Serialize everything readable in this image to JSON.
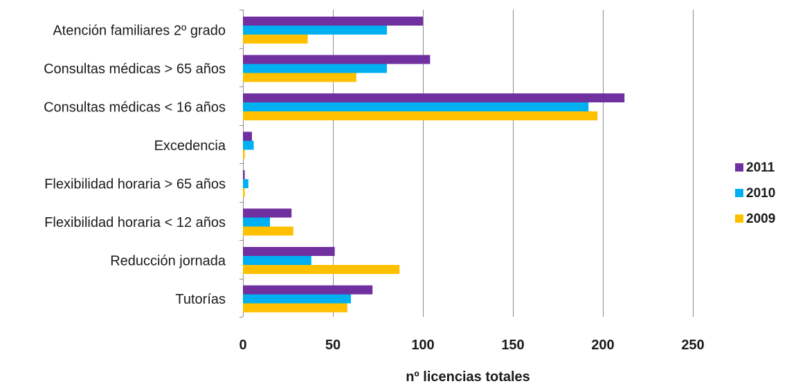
{
  "chart_data": {
    "type": "bar",
    "orientation": "horizontal",
    "categories": [
      "Atención familiares 2º grado",
      "Consultas médicas > 65 años",
      "Consultas médicas < 16 años",
      "Excedencia",
      "Flexibilidad horaria > 65 años",
      "Flexibilidad horaria < 12 años",
      "Reducción jornada",
      "Tutorías"
    ],
    "series": [
      {
        "name": "2011",
        "color": "#7030a0",
        "values": [
          100,
          104,
          212,
          5,
          1,
          27,
          51,
          72
        ]
      },
      {
        "name": "2010",
        "color": "#00b0f0",
        "values": [
          80,
          80,
          192,
          6,
          3,
          15,
          38,
          60
        ]
      },
      {
        "name": "2009",
        "color": "#ffc000",
        "values": [
          36,
          63,
          197,
          1,
          1,
          28,
          87,
          58
        ]
      }
    ],
    "xlim": [
      0,
      250
    ],
    "xticks": [
      0,
      50,
      100,
      150,
      200,
      250
    ],
    "xlabel": "nº licencias totales",
    "ylabel": "",
    "title": "",
    "grid": true,
    "legend_position": "right",
    "legend_order": [
      "2011",
      "2010",
      "2009"
    ]
  }
}
